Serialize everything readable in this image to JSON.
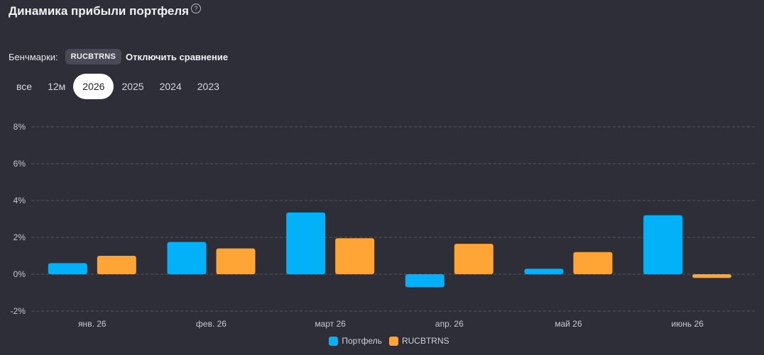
{
  "header": {
    "title": "Динамика прибыли портфеля",
    "help_glyph": "?"
  },
  "benchmarks": {
    "label": "Бенчмарки:",
    "chip": "RUCBTRNS",
    "disable_label": "Отключить сравнение"
  },
  "periods": [
    {
      "label": "все",
      "active": false
    },
    {
      "label": "12м",
      "active": false
    },
    {
      "label": "2026",
      "active": true
    },
    {
      "label": "2025",
      "active": false
    },
    {
      "label": "2024",
      "active": false
    },
    {
      "label": "2023",
      "active": false
    }
  ],
  "colors": {
    "portfolio": "#02b1f7",
    "benchmark": "#fea536"
  },
  "chart_data": {
    "type": "bar",
    "categories": [
      "янв. 26",
      "фев. 26",
      "март 26",
      "апр. 26",
      "май 26",
      "июнь 26"
    ],
    "series": [
      {
        "name": "Портфель",
        "values": [
          0.6,
          1.75,
          3.35,
          -0.7,
          0.3,
          3.2
        ]
      },
      {
        "name": "RUCBTRNS",
        "values": [
          1.0,
          1.4,
          1.95,
          1.65,
          1.2,
          -0.2
        ]
      }
    ],
    "ylim": [
      -2,
      8
    ],
    "yticks": [
      -2,
      0,
      2,
      4,
      6,
      8
    ],
    "ytick_labels": [
      "-2%",
      "0%",
      "2%",
      "4%",
      "6%",
      "8%"
    ],
    "grid": true,
    "legend": "bottom-center"
  }
}
